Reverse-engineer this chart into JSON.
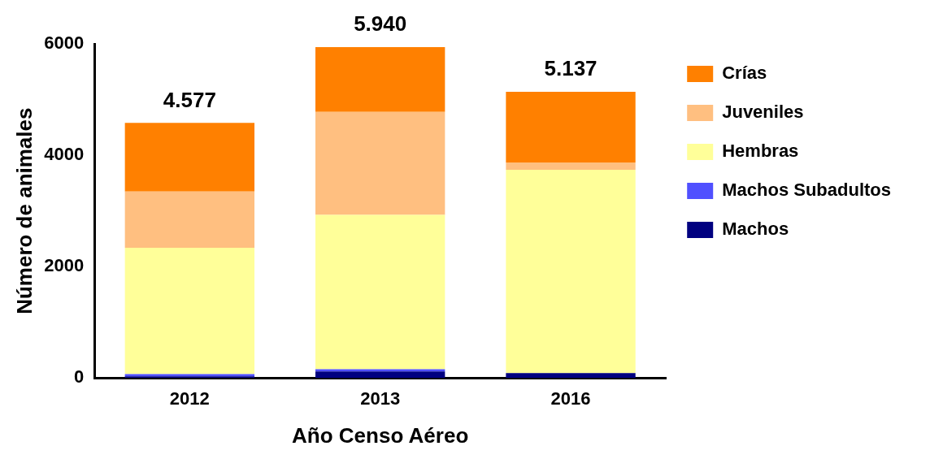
{
  "chart_data": {
    "type": "bar",
    "xlabel": "Año Censo Aéreo",
    "ylabel": "Número de animales",
    "categories": [
      "2012",
      "2013",
      "2016"
    ],
    "stacked": true,
    "series": [
      {
        "name": "Machos",
        "color": "#000080",
        "values": [
          30,
          120,
          90
        ]
      },
      {
        "name": "Machos Subadultos",
        "color": "#5050ff",
        "values": [
          40,
          40,
          null
        ]
      },
      {
        "name": "Hembras",
        "color": "#ffff99",
        "values": [
          2270,
          2770,
          3650
        ]
      },
      {
        "name": "Juveniles",
        "color": "#ffbf80",
        "values": [
          1010,
          1850,
          130
        ]
      },
      {
        "name": "Crías",
        "color": "#ff8000",
        "values": [
          1230,
          1160,
          1270
        ]
      }
    ],
    "totals": [
      "4.577",
      "5.940",
      "5.137"
    ],
    "ylim": [
      0,
      6000
    ],
    "yticks": [
      0,
      2000,
      4000,
      6000
    ],
    "grid": false,
    "legend": "top right"
  }
}
